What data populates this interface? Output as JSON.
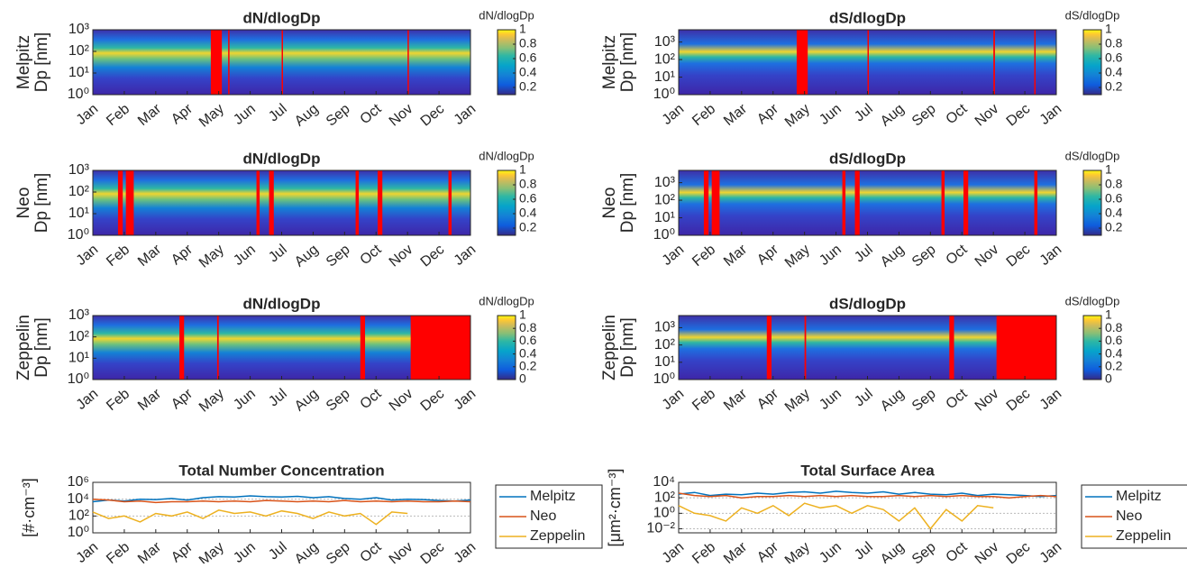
{
  "chart_data": [
    {
      "type": "heatmap",
      "title": "dN/dlogDp",
      "station": "Melpitz",
      "ylabel": "Dp [nm]",
      "colorbar_label": "dN/dlogDp",
      "log_y": true,
      "ylim": [
        1,
        1000
      ],
      "yticks": [
        {
          "value": 1,
          "label": "10⁰"
        },
        {
          "value": 10,
          "label": "10¹"
        },
        {
          "value": 100,
          "label": "10²"
        },
        {
          "value": 1000,
          "label": "10³"
        }
      ],
      "clim": [
        0.1,
        1
      ],
      "cticks": [
        0.2,
        0.4,
        0.6,
        0.8,
        1
      ],
      "xlim": [
        0,
        12
      ],
      "xticks": [
        {
          "value": 0,
          "label": "Jan"
        },
        {
          "value": 1,
          "label": "Feb"
        },
        {
          "value": 2,
          "label": "Mar"
        },
        {
          "value": 3,
          "label": "Apr"
        },
        {
          "value": 4,
          "label": "May"
        },
        {
          "value": 5,
          "label": "Jun"
        },
        {
          "value": 6,
          "label": "Jul"
        },
        {
          "value": 7,
          "label": "Aug"
        },
        {
          "value": 8,
          "label": "Sep"
        },
        {
          "value": 9,
          "label": "Oct"
        },
        {
          "value": 10,
          "label": "Nov"
        },
        {
          "value": 11,
          "label": "Dec"
        },
        {
          "value": 12,
          "label": "Jan"
        }
      ],
      "missing": [
        [
          3.75,
          4.1
        ],
        [
          4.3,
          4.34
        ],
        [
          6.0,
          6.04
        ],
        [
          10.0,
          10.04
        ]
      ],
      "missing_color": "#ff0000"
    },
    {
      "type": "heatmap",
      "title": "dS/dlogDp",
      "station": "Melpitz",
      "ylabel": "Dp [nm]",
      "colorbar_label": "dS/dlogDp",
      "log_y": true,
      "ylim": [
        1,
        5000
      ],
      "yticks": [
        {
          "value": 1,
          "label": "10⁰"
        },
        {
          "value": 10,
          "label": "10¹"
        },
        {
          "value": 100,
          "label": "10²"
        },
        {
          "value": 1000,
          "label": "10³"
        }
      ],
      "clim": [
        0.1,
        1
      ],
      "cticks": [
        0.2,
        0.4,
        0.6,
        0.8,
        1
      ],
      "xlim": [
        0,
        12
      ],
      "xticks": [
        {
          "value": 0,
          "label": "Jan"
        },
        {
          "value": 1,
          "label": "Feb"
        },
        {
          "value": 2,
          "label": "Mar"
        },
        {
          "value": 3,
          "label": "Apr"
        },
        {
          "value": 4,
          "label": "May"
        },
        {
          "value": 5,
          "label": "Jun"
        },
        {
          "value": 6,
          "label": "Jul"
        },
        {
          "value": 7,
          "label": "Aug"
        },
        {
          "value": 8,
          "label": "Sep"
        },
        {
          "value": 9,
          "label": "Oct"
        },
        {
          "value": 10,
          "label": "Nov"
        },
        {
          "value": 11,
          "label": "Dec"
        },
        {
          "value": 12,
          "label": "Jan"
        }
      ],
      "missing": [
        [
          3.75,
          4.1
        ],
        [
          6.0,
          6.04
        ],
        [
          10.0,
          10.05
        ],
        [
          11.3,
          11.34
        ]
      ],
      "missing_color": "#ff0000"
    },
    {
      "type": "heatmap",
      "title": "dN/dlogDp",
      "station": "Neo",
      "ylabel": "Dp [nm]",
      "colorbar_label": "dN/dlogDp",
      "log_y": true,
      "ylim": [
        1,
        1000
      ],
      "yticks": [
        {
          "value": 1,
          "label": "10⁰"
        },
        {
          "value": 10,
          "label": "10¹"
        },
        {
          "value": 100,
          "label": "10²"
        },
        {
          "value": 1000,
          "label": "10³"
        }
      ],
      "clim": [
        0.1,
        1
      ],
      "cticks": [
        0.2,
        0.4,
        0.6,
        0.8,
        1
      ],
      "xlim": [
        0,
        12
      ],
      "xticks": [
        {
          "value": 0,
          "label": "Jan"
        },
        {
          "value": 1,
          "label": "Feb"
        },
        {
          "value": 2,
          "label": "Mar"
        },
        {
          "value": 3,
          "label": "Apr"
        },
        {
          "value": 4,
          "label": "May"
        },
        {
          "value": 5,
          "label": "Jun"
        },
        {
          "value": 6,
          "label": "Jul"
        },
        {
          "value": 7,
          "label": "Aug"
        },
        {
          "value": 8,
          "label": "Sep"
        },
        {
          "value": 9,
          "label": "Oct"
        },
        {
          "value": 10,
          "label": "Nov"
        },
        {
          "value": 11,
          "label": "Dec"
        },
        {
          "value": 12,
          "label": "Jan"
        }
      ],
      "missing": [
        [
          0.8,
          0.95
        ],
        [
          1.05,
          1.3
        ],
        [
          5.2,
          5.3
        ],
        [
          5.6,
          5.75
        ],
        [
          8.35,
          8.45
        ],
        [
          9.05,
          9.2
        ],
        [
          11.3,
          11.4
        ]
      ],
      "missing_color": "#ff0000"
    },
    {
      "type": "heatmap",
      "title": "dS/dlogDp",
      "station": "Neo",
      "ylabel": "Dp [nm]",
      "colorbar_label": "dS/dlogDp",
      "log_y": true,
      "ylim": [
        1,
        5000
      ],
      "yticks": [
        {
          "value": 1,
          "label": "10⁰"
        },
        {
          "value": 10,
          "label": "10¹"
        },
        {
          "value": 100,
          "label": "10²"
        },
        {
          "value": 1000,
          "label": "10³"
        }
      ],
      "clim": [
        0.1,
        1
      ],
      "cticks": [
        0.2,
        0.4,
        0.6,
        0.8,
        1
      ],
      "xlim": [
        0,
        12
      ],
      "xticks": [
        {
          "value": 0,
          "label": "Jan"
        },
        {
          "value": 1,
          "label": "Feb"
        },
        {
          "value": 2,
          "label": "Mar"
        },
        {
          "value": 3,
          "label": "Apr"
        },
        {
          "value": 4,
          "label": "May"
        },
        {
          "value": 5,
          "label": "Jun"
        },
        {
          "value": 6,
          "label": "Jul"
        },
        {
          "value": 7,
          "label": "Aug"
        },
        {
          "value": 8,
          "label": "Sep"
        },
        {
          "value": 9,
          "label": "Oct"
        },
        {
          "value": 10,
          "label": "Nov"
        },
        {
          "value": 11,
          "label": "Dec"
        },
        {
          "value": 12,
          "label": "Jan"
        }
      ],
      "missing": [
        [
          0.8,
          0.95
        ],
        [
          1.05,
          1.3
        ],
        [
          5.2,
          5.3
        ],
        [
          5.6,
          5.75
        ],
        [
          8.35,
          8.45
        ],
        [
          9.05,
          9.2
        ],
        [
          11.3,
          11.4
        ]
      ],
      "missing_color": "#ff0000"
    },
    {
      "type": "heatmap",
      "title": "dN/dlogDp",
      "station": "Zeppelin",
      "ylabel": "Dp [nm]",
      "colorbar_label": "dN/dlogDp",
      "log_y": true,
      "ylim": [
        1,
        1000
      ],
      "yticks": [
        {
          "value": 1,
          "label": "10⁰"
        },
        {
          "value": 10,
          "label": "10¹"
        },
        {
          "value": 100,
          "label": "10²"
        },
        {
          "value": 1000,
          "label": "10³"
        }
      ],
      "clim": [
        0,
        1
      ],
      "cticks": [
        0,
        0.2,
        0.4,
        0.6,
        0.8,
        1
      ],
      "xlim": [
        0,
        12
      ],
      "xticks": [
        {
          "value": 0,
          "label": "Jan"
        },
        {
          "value": 1,
          "label": "Feb"
        },
        {
          "value": 2,
          "label": "Mar"
        },
        {
          "value": 3,
          "label": "Apr"
        },
        {
          "value": 4,
          "label": "May"
        },
        {
          "value": 5,
          "label": "Jun"
        },
        {
          "value": 6,
          "label": "Jul"
        },
        {
          "value": 7,
          "label": "Aug"
        },
        {
          "value": 8,
          "label": "Sep"
        },
        {
          "value": 9,
          "label": "Oct"
        },
        {
          "value": 10,
          "label": "Nov"
        },
        {
          "value": 11,
          "label": "Dec"
        },
        {
          "value": 12,
          "label": "Jan"
        }
      ],
      "missing": [
        [
          2.75,
          2.9
        ],
        [
          3.95,
          4.0
        ],
        [
          8.5,
          8.65
        ],
        [
          10.1,
          12
        ]
      ],
      "missing_color": "#ff0000"
    },
    {
      "type": "heatmap",
      "title": "dS/dlogDp",
      "station": "Zeppelin",
      "ylabel": "Dp [nm]",
      "colorbar_label": "dS/dlogDp",
      "log_y": true,
      "ylim": [
        1,
        5000
      ],
      "yticks": [
        {
          "value": 1,
          "label": "10⁰"
        },
        {
          "value": 10,
          "label": "10¹"
        },
        {
          "value": 100,
          "label": "10²"
        },
        {
          "value": 1000,
          "label": "10³"
        }
      ],
      "clim": [
        0,
        1
      ],
      "cticks": [
        0,
        0.2,
        0.4,
        0.6,
        0.8,
        1
      ],
      "xlim": [
        0,
        12
      ],
      "xticks": [
        {
          "value": 0,
          "label": "Jan"
        },
        {
          "value": 1,
          "label": "Feb"
        },
        {
          "value": 2,
          "label": "Mar"
        },
        {
          "value": 3,
          "label": "Apr"
        },
        {
          "value": 4,
          "label": "May"
        },
        {
          "value": 5,
          "label": "Jun"
        },
        {
          "value": 6,
          "label": "Jul"
        },
        {
          "value": 7,
          "label": "Aug"
        },
        {
          "value": 8,
          "label": "Sep"
        },
        {
          "value": 9,
          "label": "Oct"
        },
        {
          "value": 10,
          "label": "Nov"
        },
        {
          "value": 11,
          "label": "Dec"
        },
        {
          "value": 12,
          "label": "Jan"
        }
      ],
      "missing": [
        [
          2.8,
          2.95
        ],
        [
          4.0,
          4.05
        ],
        [
          8.6,
          8.75
        ],
        [
          10.1,
          12
        ]
      ],
      "missing_color": "#ff0000"
    },
    {
      "type": "line",
      "title": "Total Number Concentration",
      "ylabel": "[#·cm⁻³]",
      "log_y": true,
      "grid": true,
      "legend": "outside-right",
      "ylim": [
        1,
        1000000
      ],
      "yticks": [
        {
          "value": 1,
          "label": "10⁰"
        },
        {
          "value": 100,
          "label": "10²"
        },
        {
          "value": 10000,
          "label": "10⁴"
        },
        {
          "value": 1000000,
          "label": "10⁶"
        }
      ],
      "xlim": [
        0,
        12
      ],
      "xticks": [
        {
          "value": 0,
          "label": "Jan"
        },
        {
          "value": 1,
          "label": "Feb"
        },
        {
          "value": 2,
          "label": "Mar"
        },
        {
          "value": 3,
          "label": "Apr"
        },
        {
          "value": 4,
          "label": "May"
        },
        {
          "value": 5,
          "label": "Jun"
        },
        {
          "value": 6,
          "label": "Jul"
        },
        {
          "value": 7,
          "label": "Aug"
        },
        {
          "value": 8,
          "label": "Sep"
        },
        {
          "value": 9,
          "label": "Oct"
        },
        {
          "value": 10,
          "label": "Nov"
        },
        {
          "value": 11,
          "label": "Dec"
        },
        {
          "value": 12,
          "label": "Jan"
        }
      ],
      "x": [
        0,
        0.5,
        1,
        1.5,
        2,
        2.5,
        3,
        3.5,
        4,
        4.5,
        5,
        5.5,
        6,
        6.5,
        7,
        7.5,
        8,
        8.5,
        9,
        9.5,
        10,
        10.5,
        11,
        11.5,
        12
      ],
      "series": [
        {
          "name": "Melpitz",
          "color": "#0072bd",
          "values": [
            5000,
            8000,
            6000,
            10000,
            9000,
            12000,
            8000,
            15000,
            20000,
            18000,
            25000,
            20000,
            18000,
            22000,
            15000,
            20000,
            12000,
            10000,
            15000,
            8000,
            10000,
            9000,
            7000,
            6000,
            8000
          ]
        },
        {
          "name": "Neo",
          "color": "#d95319",
          "values": [
            10000,
            8000,
            5000,
            6000,
            4000,
            5000,
            5000,
            6000,
            5000,
            6000,
            5000,
            7000,
            6000,
            5000,
            6000,
            5000,
            7000,
            5000,
            6000,
            5000,
            6000,
            5000,
            5000,
            6000,
            5000
          ]
        },
        {
          "name": "Zeppelin",
          "color": "#edb120",
          "values": [
            300,
            50,
            100,
            20,
            200,
            100,
            300,
            50,
            500,
            200,
            300,
            100,
            400,
            200,
            50,
            300,
            100,
            200,
            10,
            300,
            200,
            null,
            null,
            null,
            null
          ]
        }
      ]
    },
    {
      "type": "line",
      "title": "Total Surface Area",
      "ylabel": "[μm²·cm⁻³]",
      "log_y": true,
      "grid": true,
      "legend": "outside-right",
      "ylim": [
        0.003,
        10000
      ],
      "yticks": [
        {
          "value": 0.01,
          "label": "10⁻²"
        },
        {
          "value": 1,
          "label": "10⁰"
        },
        {
          "value": 100,
          "label": "10²"
        },
        {
          "value": 10000,
          "label": "10⁴"
        }
      ],
      "xlim": [
        0,
        12
      ],
      "xticks": [
        {
          "value": 0,
          "label": "Jan"
        },
        {
          "value": 1,
          "label": "Feb"
        },
        {
          "value": 2,
          "label": "Mar"
        },
        {
          "value": 3,
          "label": "Apr"
        },
        {
          "value": 4,
          "label": "May"
        },
        {
          "value": 5,
          "label": "Jun"
        },
        {
          "value": 6,
          "label": "Jul"
        },
        {
          "value": 7,
          "label": "Aug"
        },
        {
          "value": 8,
          "label": "Sep"
        },
        {
          "value": 9,
          "label": "Oct"
        },
        {
          "value": 10,
          "label": "Nov"
        },
        {
          "value": 11,
          "label": "Dec"
        },
        {
          "value": 12,
          "label": "Jan"
        }
      ],
      "x": [
        0,
        0.5,
        1,
        1.5,
        2,
        2.5,
        3,
        3.5,
        4,
        4.5,
        5,
        5.5,
        6,
        6.5,
        7,
        7.5,
        8,
        8.5,
        9,
        9.5,
        10,
        10.5,
        11,
        11.5,
        12
      ],
      "series": [
        {
          "name": "Melpitz",
          "color": "#0072bd",
          "values": [
            300,
            500,
            200,
            300,
            250,
            400,
            300,
            500,
            600,
            400,
            700,
            500,
            400,
            600,
            300,
            500,
            300,
            250,
            400,
            200,
            300,
            250,
            200,
            150,
            200
          ]
        },
        {
          "name": "Neo",
          "color": "#d95319",
          "values": [
            400,
            200,
            150,
            200,
            100,
            150,
            150,
            200,
            150,
            200,
            150,
            200,
            150,
            150,
            200,
            150,
            200,
            150,
            200,
            150,
            150,
            100,
            150,
            200,
            150
          ]
        },
        {
          "name": "Zeppelin",
          "color": "#edb120",
          "values": [
            10,
            1,
            0.5,
            0.1,
            5,
            1,
            10,
            0.5,
            20,
            5,
            10,
            1,
            10,
            3,
            0.1,
            5,
            0.01,
            3,
            0.1,
            10,
            5,
            null,
            null,
            null,
            null
          ]
        }
      ]
    }
  ]
}
